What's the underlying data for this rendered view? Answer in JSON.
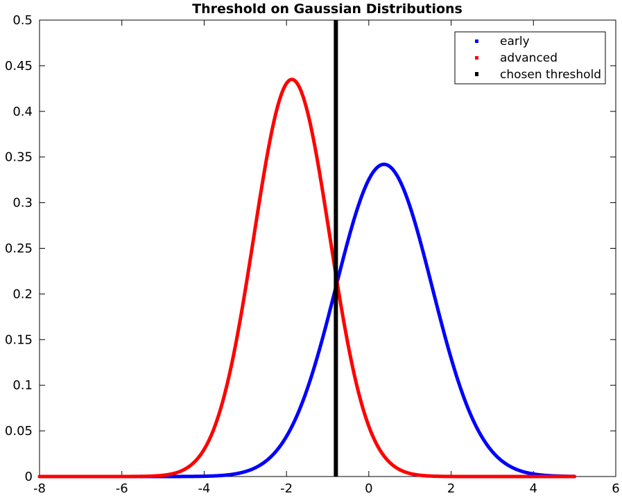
{
  "chart_data": {
    "type": "line",
    "title": "Threshold on Gaussian Distributions",
    "xlabel": "",
    "ylabel": "",
    "xlim": [
      -8,
      6
    ],
    "ylim": [
      0,
      0.5
    ],
    "x_ticks": [
      "-8",
      "-6",
      "-4",
      "-2",
      "0",
      "2",
      "4",
      "6"
    ],
    "y_ticks": [
      "0",
      "0.05",
      "0.1",
      "0.15",
      "0.2",
      "0.25",
      "0.3",
      "0.35",
      "0.4",
      "0.45",
      "0.5"
    ],
    "grid": false,
    "legend_position": "top-right",
    "series": [
      {
        "name": "early",
        "color": "#0000ff",
        "distribution": "gaussian",
        "mean": 0.37,
        "std": 1.17,
        "peak": 0.342,
        "x_range": [
          -8,
          5
        ]
      },
      {
        "name": "advanced",
        "color": "#ff0000",
        "distribution": "gaussian",
        "mean": -1.87,
        "std": 0.92,
        "peak": 0.435,
        "x_range": [
          -8,
          5
        ]
      },
      {
        "name": "chosen threshold",
        "color": "#000000",
        "x": -0.8,
        "y_range": [
          0,
          0.5
        ]
      }
    ]
  }
}
